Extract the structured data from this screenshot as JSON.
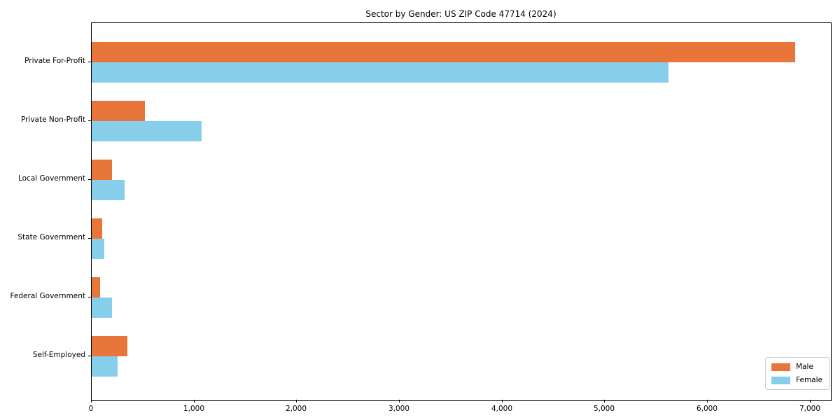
{
  "title": "Sector by Gender: US ZIP Code 47714 (2024)",
  "chart_data": {
    "type": "bar",
    "orientation": "horizontal",
    "title": "Sector by Gender: US ZIP Code 47714 (2024)",
    "categories": [
      "Private For-Profit",
      "Private Non-Profit",
      "Local Government",
      "State Government",
      "Federal Government",
      "Self-Employed"
    ],
    "series": [
      {
        "name": "Male",
        "color": "#e8763b",
        "values": [
          6850,
          520,
          195,
          100,
          80,
          350
        ]
      },
      {
        "name": "Female",
        "color": "#87ceeb",
        "values": [
          5620,
          1070,
          320,
          120,
          195,
          255
        ]
      }
    ],
    "xlabel": "",
    "ylabel": "",
    "xlim": [
      0,
      7200
    ],
    "x_ticks": [
      0,
      1000,
      2000,
      3000,
      4000,
      5000,
      6000,
      7000
    ],
    "x_tick_labels": [
      "0",
      "1,000",
      "2,000",
      "3,000",
      "4,000",
      "5,000",
      "6,000",
      "7,000"
    ],
    "legend": {
      "position": "lower right",
      "entries": [
        "Male",
        "Female"
      ]
    },
    "grid": false,
    "background_color": "#ffffff",
    "axis_color": "#000000"
  }
}
